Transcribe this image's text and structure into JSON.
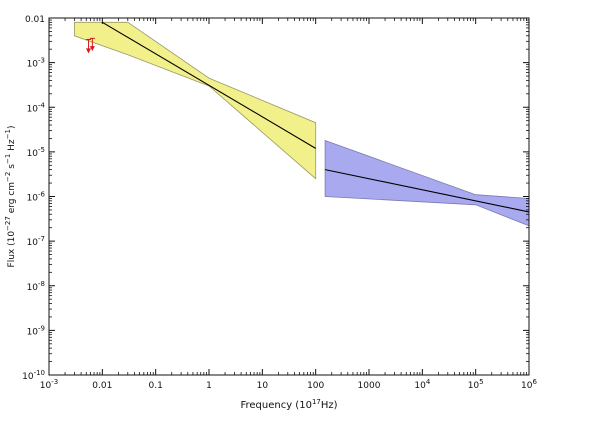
{
  "chart_data": {
    "type": "line",
    "title": "",
    "xlabel": "Frequency (10",
    "xlabel_exp": "17",
    "xlabel_unit": "Hz)",
    "ylabel": "Flux (10^-27 erg cm^-2 s^-1 Hz^-1)",
    "xscale": "log",
    "yscale": "log",
    "xlim": [
      0.001,
      1000000
    ],
    "ylim": [
      1e-10,
      0.01
    ],
    "grid": false,
    "x_ticks": [
      {
        "value": 0.001,
        "base": "10",
        "exp": "-3"
      },
      {
        "value": 0.01,
        "text": "0.01"
      },
      {
        "value": 0.1,
        "text": "0.1"
      },
      {
        "value": 1,
        "text": "1"
      },
      {
        "value": 10,
        "text": "10"
      },
      {
        "value": 100,
        "text": "100"
      },
      {
        "value": 1000,
        "text": "1000"
      },
      {
        "value": 10000,
        "base": "10",
        "exp": "4"
      },
      {
        "value": 100000,
        "base": "10",
        "exp": "5"
      },
      {
        "value": 1000000,
        "base": "10",
        "exp": "6"
      }
    ],
    "y_ticks": [
      {
        "value": 0.01,
        "text": "0.01"
      },
      {
        "value": 0.001,
        "base": "10",
        "exp": "-3"
      },
      {
        "value": 0.0001,
        "base": "10",
        "exp": "-4"
      },
      {
        "value": 1e-05,
        "base": "10",
        "exp": "-5"
      },
      {
        "value": 1e-06,
        "base": "10",
        "exp": "-6"
      },
      {
        "value": 1e-07,
        "base": "10",
        "exp": "-7"
      },
      {
        "value": 1e-08,
        "base": "10",
        "exp": "-8"
      },
      {
        "value": 1e-09,
        "base": "10",
        "exp": "-9"
      },
      {
        "value": 1e-10,
        "base": "10",
        "exp": "-10"
      }
    ],
    "series": [
      {
        "color": "#f2f08a",
        "edge_color": "#9a9a6a",
        "band": [
          {
            "x": 0.003,
            "upper": 0.008,
            "lower": 0.004
          },
          {
            "x": 0.03,
            "upper": 0.008,
            "lower": 0.0015
          },
          {
            "x": 1,
            "upper": 0.00045,
            "lower": 0.0003
          },
          {
            "x": 100,
            "upper": 4.5e-05,
            "lower": 2.5e-06
          }
        ],
        "fit_line": [
          {
            "x": 0.01,
            "y": 0.008
          },
          {
            "x": 100,
            "y": 1.2e-05
          }
        ]
      },
      {
        "color": "#a9a9f0",
        "edge_color": "#7a7ab0",
        "band": [
          {
            "x": 150,
            "upper": 1.8e-05,
            "lower": 1e-06
          },
          {
            "x": 100000,
            "upper": 1.1e-06,
            "lower": 6.5e-07
          },
          {
            "x": 1000000,
            "upper": 9e-07,
            "lower": 2.2e-07
          }
        ],
        "fit_line": [
          {
            "x": 150,
            "y": 4e-06
          },
          {
            "x": 1000000,
            "y": 4.5e-07
          }
        ]
      }
    ],
    "upper_limits": [
      {
        "x": 0.0055,
        "y": 0.0033,
        "y_low": 0.0017
      },
      {
        "x": 0.0065,
        "y": 0.0035,
        "y_low": 0.0019
      }
    ],
    "upper_limit_color": "#d61a1a"
  }
}
